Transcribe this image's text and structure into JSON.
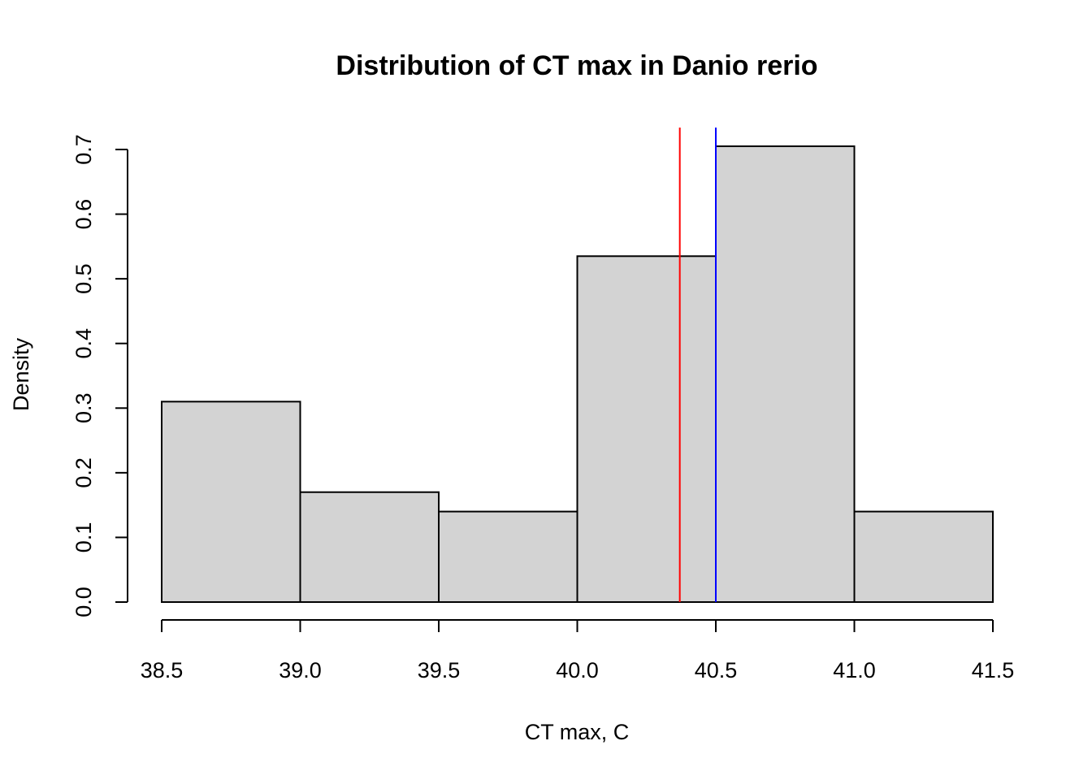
{
  "chart_data": {
    "type": "bar",
    "title": "Distribution of CT max in Danio rerio",
    "xlabel": "CT max, C",
    "ylabel": "Density",
    "bins": [
      {
        "start": 38.5,
        "end": 39.0,
        "density": 0.31
      },
      {
        "start": 39.0,
        "end": 39.5,
        "density": 0.17
      },
      {
        "start": 39.5,
        "end": 40.0,
        "density": 0.14
      },
      {
        "start": 40.0,
        "end": 40.5,
        "density": 0.535
      },
      {
        "start": 40.5,
        "end": 41.0,
        "density": 0.705
      },
      {
        "start": 41.0,
        "end": 41.5,
        "density": 0.14
      }
    ],
    "xlim": [
      38.5,
      41.5
    ],
    "ylim": [
      0,
      0.7
    ],
    "xticks": [
      "38.5",
      "39.0",
      "39.5",
      "40.0",
      "40.5",
      "41.0",
      "41.5"
    ],
    "yticks": [
      "0.0",
      "0.1",
      "0.2",
      "0.3",
      "0.4",
      "0.5",
      "0.6",
      "0.7"
    ],
    "vlines": [
      {
        "x": 40.37,
        "color": "#ff0000"
      },
      {
        "x": 40.5,
        "color": "#0000ff"
      }
    ],
    "grid": false,
    "bar_fill": "#d3d3d3"
  }
}
